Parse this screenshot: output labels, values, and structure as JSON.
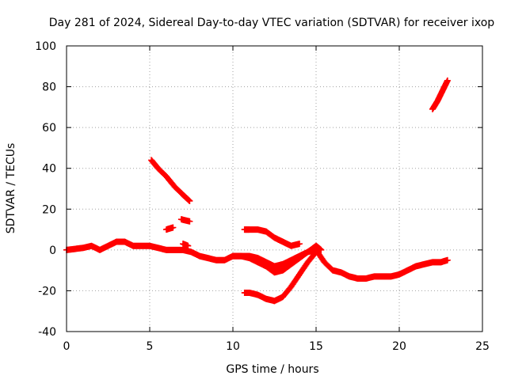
{
  "chart_data": {
    "type": "scatter",
    "title": "Day 281 of 2024, Sidereal Day-to-day VTEC variation (SDTVAR) for receiver ixop",
    "xlabel": "GPS time / hours",
    "ylabel": "SDTVAR / TECUs",
    "xlim": [
      0,
      25
    ],
    "ylim": [
      -40,
      100
    ],
    "x_ticks": [
      "0",
      "5",
      "10",
      "15",
      "20",
      "25"
    ],
    "y_ticks": [
      "-40",
      "-20",
      "0",
      "20",
      "40",
      "60",
      "80",
      "100"
    ],
    "grid": true,
    "marker": "+",
    "series_color": "#ff0000",
    "series": [
      {
        "name": "main-trace",
        "points": [
          [
            0.0,
            0
          ],
          [
            0.5,
            0.5
          ],
          [
            1.0,
            1
          ],
          [
            1.5,
            2
          ],
          [
            2.0,
            0
          ],
          [
            2.5,
            2
          ],
          [
            3.0,
            4
          ],
          [
            3.5,
            4
          ],
          [
            4.0,
            2
          ],
          [
            4.5,
            2
          ],
          [
            5.0,
            2
          ],
          [
            5.5,
            1
          ],
          [
            6.0,
            0
          ],
          [
            6.5,
            0
          ],
          [
            7.0,
            0
          ],
          [
            7.5,
            -1
          ],
          [
            8.0,
            -3
          ],
          [
            8.5,
            -4
          ],
          [
            9.0,
            -5
          ],
          [
            9.5,
            -5
          ],
          [
            10.0,
            -3
          ],
          [
            10.5,
            -3
          ],
          [
            11.0,
            -3
          ],
          [
            11.5,
            -4
          ],
          [
            12.0,
            -6
          ],
          [
            12.5,
            -8
          ],
          [
            13.0,
            -7
          ],
          [
            13.5,
            -5
          ],
          [
            14.0,
            -3
          ],
          [
            14.5,
            -1
          ],
          [
            15.0,
            0
          ],
          [
            15.5,
            -6
          ],
          [
            16.0,
            -10
          ],
          [
            16.5,
            -11
          ],
          [
            17.0,
            -13
          ],
          [
            17.5,
            -14
          ],
          [
            18.0,
            -14
          ],
          [
            18.5,
            -13
          ],
          [
            19.0,
            -13
          ],
          [
            19.5,
            -13
          ],
          [
            20.0,
            -12
          ],
          [
            20.5,
            -10
          ],
          [
            21.0,
            -8
          ],
          [
            21.5,
            -7
          ],
          [
            22.0,
            -6
          ],
          [
            22.5,
            -6
          ],
          [
            22.9,
            -5
          ]
        ]
      },
      {
        "name": "descending-arc-5h",
        "points": [
          [
            5.1,
            44
          ],
          [
            5.5,
            40
          ],
          [
            6.0,
            36
          ],
          [
            6.5,
            31
          ],
          [
            7.0,
            27
          ],
          [
            7.4,
            24
          ]
        ]
      },
      {
        "name": "short-segment-6h",
        "points": [
          [
            6.0,
            10
          ],
          [
            6.4,
            11
          ]
        ]
      },
      {
        "name": "short-segment-7h",
        "points": [
          [
            6.9,
            15
          ],
          [
            7.4,
            14
          ]
        ]
      },
      {
        "name": "short-segment-7h-low",
        "points": [
          [
            7.0,
            3
          ],
          [
            7.3,
            2
          ]
        ]
      },
      {
        "name": "upper-arc-11h",
        "points": [
          [
            10.7,
            10
          ],
          [
            11.0,
            10
          ],
          [
            11.5,
            10
          ],
          [
            12.0,
            9
          ],
          [
            12.5,
            6
          ],
          [
            13.0,
            4
          ],
          [
            13.5,
            2
          ],
          [
            14.0,
            3
          ]
        ]
      },
      {
        "name": "lower-arc-11h",
        "points": [
          [
            10.7,
            -21
          ],
          [
            11.0,
            -21
          ],
          [
            11.5,
            -22
          ],
          [
            12.0,
            -24
          ],
          [
            12.5,
            -25
          ],
          [
            13.0,
            -23
          ],
          [
            13.5,
            -18
          ],
          [
            14.0,
            -12
          ],
          [
            14.5,
            -6
          ],
          [
            15.0,
            -1
          ]
        ]
      },
      {
        "name": "crossing-arc-11h",
        "points": [
          [
            10.0,
            -3
          ],
          [
            10.5,
            -3
          ],
          [
            11.0,
            -4
          ],
          [
            11.5,
            -6
          ],
          [
            12.0,
            -8
          ],
          [
            12.5,
            -11
          ],
          [
            13.0,
            -10
          ],
          [
            13.5,
            -7
          ],
          [
            14.0,
            -4
          ],
          [
            14.5,
            -1
          ],
          [
            15.0,
            2
          ],
          [
            15.3,
            0
          ]
        ]
      },
      {
        "name": "rising-segment-22h",
        "points": [
          [
            22.0,
            69
          ],
          [
            22.3,
            73
          ],
          [
            22.6,
            78
          ],
          [
            22.9,
            83
          ]
        ]
      }
    ]
  }
}
